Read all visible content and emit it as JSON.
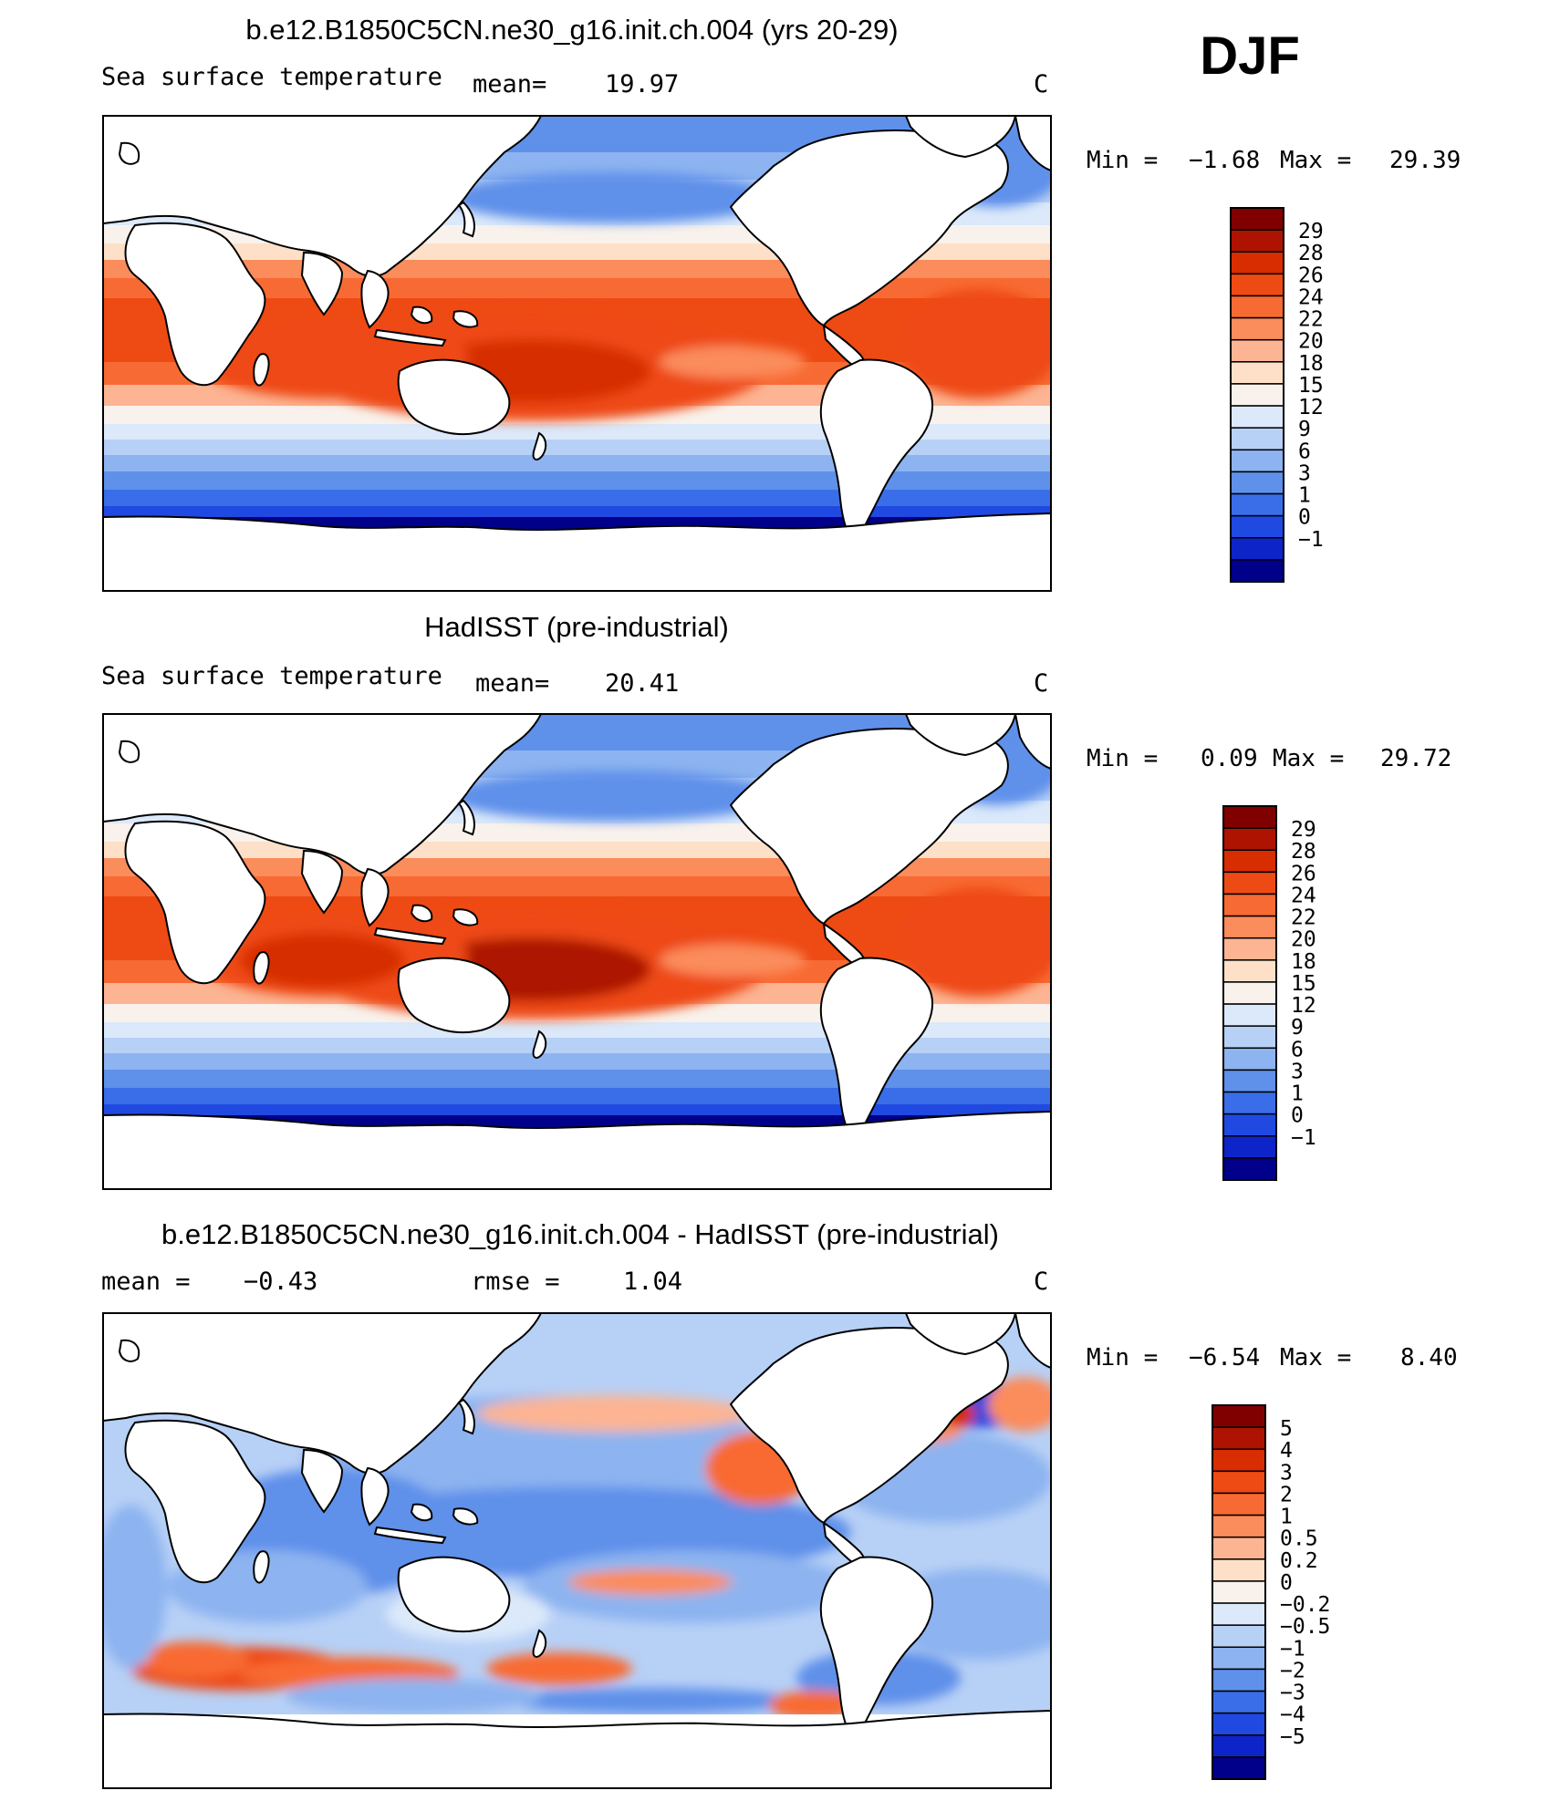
{
  "season": "DJF",
  "chart_data": [
    {
      "type": "heatmap",
      "title": "b.e12.B1850C5CN.ne30_g16.init.ch.004 (yrs 20-29)",
      "variable": "Sea surface temperature",
      "mean_label": "mean=",
      "mean": "19.97",
      "units": "C",
      "min_label": "Min =",
      "min": "−1.68",
      "max_label": "Max =",
      "max": "29.39",
      "colorbar": [
        "29",
        "28",
        "26",
        "24",
        "22",
        "20",
        "18",
        "15",
        "12",
        "9",
        "6",
        "3",
        "1",
        "0",
        "−1"
      ],
      "colors": [
        "#800000",
        "#ad1300",
        "#d72d00",
        "#ee4a14",
        "#f86a33",
        "#fb8c5c",
        "#fcb493",
        "#fde0c7",
        "#f9f2ec",
        "#dbe9fa",
        "#b7d0f6",
        "#8db4f0",
        "#5f90ea",
        "#3a6de8",
        "#1f49e0",
        "#0d25c8",
        "#00008b"
      ]
    },
    {
      "type": "heatmap",
      "title": "HadISST (pre-industrial)",
      "variable": "Sea surface temperature",
      "mean_label": "mean=",
      "mean": "20.41",
      "units": "C",
      "min_label": "Min =",
      "min": "0.09",
      "max_label": "Max =",
      "max": "29.72",
      "colorbar": [
        "29",
        "28",
        "26",
        "24",
        "22",
        "20",
        "18",
        "15",
        "12",
        "9",
        "6",
        "3",
        "1",
        "0",
        "−1"
      ],
      "colors": [
        "#800000",
        "#ad1300",
        "#d72d00",
        "#ee4a14",
        "#f86a33",
        "#fb8c5c",
        "#fcb493",
        "#fde0c7",
        "#f9f2ec",
        "#dbe9fa",
        "#b7d0f6",
        "#8db4f0",
        "#5f90ea",
        "#3a6de8",
        "#1f49e0",
        "#0d25c8",
        "#00008b"
      ]
    },
    {
      "type": "heatmap",
      "title": "b.e12.B1850C5CN.ne30_g16.init.ch.004 - HadISST (pre-industrial)",
      "mean_label": "mean =",
      "mean": "−0.43",
      "rmse_label": "rmse =",
      "rmse": "1.04",
      "units": "C",
      "min_label": "Min =",
      "min": "−6.54",
      "max_label": "Max =",
      "max": "8.40",
      "colorbar": [
        "5",
        "4",
        "3",
        "2",
        "1",
        "0.5",
        "0.2",
        "0",
        "−0.2",
        "−0.5",
        "−1",
        "−2",
        "−3",
        "−4",
        "−5"
      ],
      "colors": [
        "#800000",
        "#ad1300",
        "#d72d00",
        "#ee4a14",
        "#f86a33",
        "#fb8c5c",
        "#fcb493",
        "#fde0c7",
        "#f9f2ec",
        "#dbe9fa",
        "#b7d0f6",
        "#8db4f0",
        "#5f90ea",
        "#3a6de8",
        "#1f49e0",
        "#0d25c8",
        "#00008b"
      ]
    }
  ]
}
